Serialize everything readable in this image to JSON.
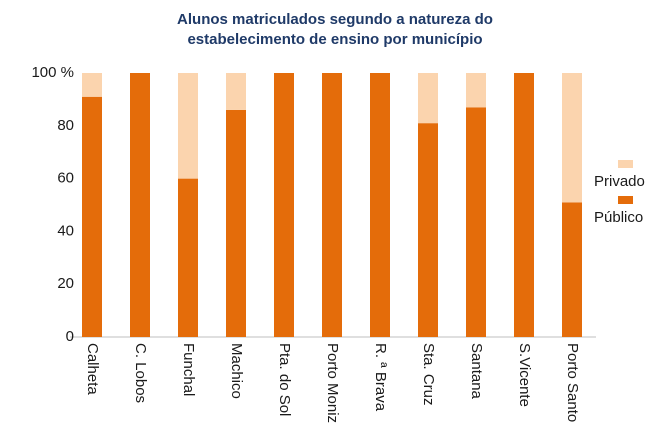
{
  "chart_data": {
    "type": "stacked_bar",
    "title": [
      "Alunos matriculados segundo a natureza do",
      "estabelecimento de ensino por município"
    ],
    "categories": [
      "Calheta",
      "C. Lobos",
      "Funchal",
      "Machico",
      "Pta. do Sol",
      "Porto Moniz",
      "R. ª Brava",
      "Sta. Cruz",
      "Santana",
      "S.Vicente",
      "Porto Santo"
    ],
    "series": [
      {
        "name": "Público",
        "color": "#e46c0a",
        "values": [
          91,
          100,
          60,
          86,
          100,
          100,
          100,
          81,
          87,
          100,
          51
        ]
      },
      {
        "name": "Privado",
        "color": "#fbd4ae",
        "values": [
          9,
          0,
          40,
          14,
          0,
          0,
          0,
          19,
          13,
          0,
          49
        ]
      }
    ],
    "ylim": [
      0,
      100
    ],
    "yticks": [
      0,
      20,
      40,
      60,
      80,
      {
        "value": 100,
        "label": "100 %"
      }
    ],
    "grid": false,
    "legend": "right"
  }
}
